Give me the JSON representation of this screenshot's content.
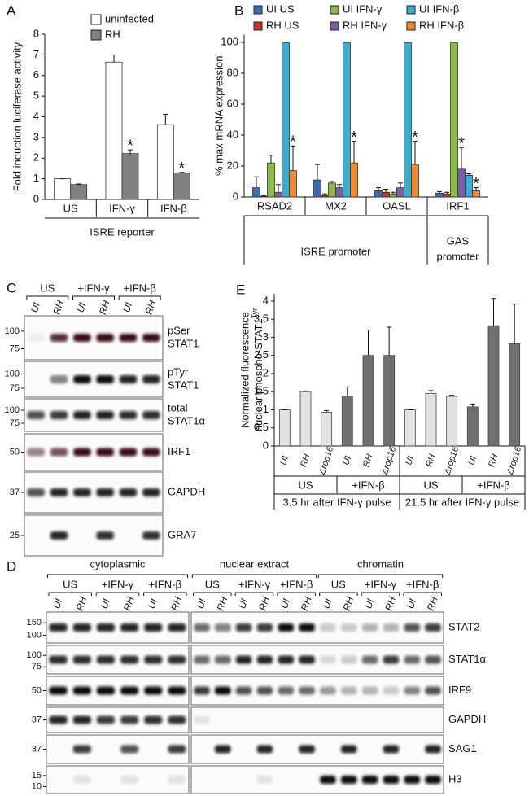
{
  "panel_labels": [
    "A",
    "B",
    "C",
    "D",
    "E"
  ],
  "chart_data": [
    {
      "type": "bar",
      "ylabel": "Fold induction luciferase activity",
      "xlabel": "ISRE reporter",
      "categories": [
        "US",
        "IFN-γ",
        "IFN-β"
      ],
      "series": [
        {
          "name": "uninfected",
          "color": "#ffffff",
          "values": [
            1.0,
            6.65,
            3.62
          ],
          "errors": [
            0,
            0.35,
            0.5
          ],
          "significance": [
            null,
            null,
            null
          ]
        },
        {
          "name": "RH",
          "color": "#808080",
          "values": [
            0.72,
            2.22,
            1.28
          ],
          "errors": [
            0.03,
            0.18,
            0.03
          ],
          "significance": [
            null,
            "*",
            "*"
          ]
        }
      ],
      "ylim": [
        0,
        8
      ],
      "yticks": [
        0,
        1,
        2,
        3,
        4,
        5,
        6,
        7,
        8
      ]
    },
    {
      "type": "bar",
      "ylabel": "% max mRNA expression",
      "categories": [
        "RSAD2",
        "MX2",
        "OASL",
        "IRF1"
      ],
      "groups": [
        {
          "lines": [
            "ISRE promoter"
          ]
        },
        {
          "lines": [
            "GAS",
            "promoter"
          ]
        }
      ],
      "series": [
        {
          "name": "UI US",
          "color": "#3a6fb5",
          "values": [
            6,
            11,
            4,
            2.5
          ],
          "errors": [
            7,
            10,
            2,
            1
          ],
          "significance": [
            null,
            null,
            null,
            null
          ]
        },
        {
          "name": "RH US",
          "color": "#c0392b",
          "values": [
            0.5,
            1,
            3,
            2
          ],
          "errors": [
            0.5,
            1,
            2,
            1
          ],
          "significance": [
            null,
            null,
            null,
            null
          ]
        },
        {
          "name": "UI IFN-γ",
          "color": "#8db84a",
          "values": [
            22,
            9,
            2,
            100
          ],
          "errors": [
            5,
            1,
            1,
            0
          ],
          "significance": [
            null,
            null,
            null,
            null
          ]
        },
        {
          "name": "RH IFN-γ",
          "color": "#7b5ea7",
          "values": [
            3,
            6,
            6,
            18
          ],
          "errors": [
            5,
            2,
            3,
            14
          ],
          "significance": [
            null,
            null,
            null,
            "*"
          ]
        },
        {
          "name": "UI IFN-β",
          "color": "#3aaed0",
          "values": [
            100,
            100,
            100,
            14
          ],
          "errors": [
            0,
            0,
            0,
            1
          ],
          "significance": [
            null,
            null,
            null,
            null
          ]
        },
        {
          "name": "RH IFN-β",
          "color": "#f08a30",
          "values": [
            17,
            22,
            21,
            4
          ],
          "errors": [
            16,
            14,
            15,
            2
          ],
          "significance": [
            "*",
            "*",
            "*",
            "*"
          ]
        }
      ],
      "ylim": [
        0,
        105
      ],
      "yticks": [
        0,
        20,
        40,
        60,
        80,
        100
      ]
    },
    {
      "type": "bar",
      "ylabel_lines": [
        "Normalized fluorescence",
        "nuclear phospho-STAT1"
      ],
      "ylabel_superscript": "Tyr",
      "categories": [
        "UI",
        "RH",
        "Δrop16",
        "UI",
        "RH",
        "Δrop16",
        "UI",
        "RH",
        "Δrop16",
        "UI",
        "RH",
        "Δrop16"
      ],
      "values": [
        1.0,
        1.5,
        0.93,
        1.38,
        2.5,
        2.5,
        1.0,
        1.45,
        1.37,
        1.08,
        3.32,
        2.82
      ],
      "errors": [
        0,
        0.02,
        0.05,
        0.25,
        0.7,
        0.78,
        0,
        0.08,
        0.03,
        0.08,
        0.75,
        1.1
      ],
      "colors": [
        "#e2e2e2",
        "#e2e2e2",
        "#e2e2e2",
        "#707070",
        "#707070",
        "#707070",
        "#e2e2e2",
        "#e2e2e2",
        "#e2e2e2",
        "#707070",
        "#707070",
        "#707070"
      ],
      "treatments": [
        "US",
        "+IFN-β",
        "US",
        "+IFN-β"
      ],
      "timepoints": [
        "3.5 hr after IFN-γ pulse",
        "21.5 hr after IFN-γ pulse"
      ],
      "ylim": [
        0,
        4.2
      ],
      "yticks": [
        0,
        0.5,
        1,
        1.5,
        2,
        2.5,
        3,
        3.5,
        4
      ]
    }
  ],
  "blot_c": {
    "conditions": [
      "US",
      "+IFN-γ",
      "+IFN-β"
    ],
    "lanes": [
      "UI",
      "RH",
      "UI",
      "RH",
      "UI",
      "RH"
    ],
    "rows": [
      {
        "label": [
          "pSer",
          "STAT1"
        ],
        "markers": [
          100,
          75
        ]
      },
      {
        "label": [
          "pTyr",
          "STAT1"
        ],
        "markers": [
          100,
          75
        ]
      },
      {
        "label": [
          "total",
          "STAT1α"
        ],
        "markers": [
          100,
          75
        ]
      },
      {
        "label": [
          "IRF1"
        ],
        "markers": [
          50
        ]
      },
      {
        "label": [
          "GAPDH"
        ],
        "markers": [
          37
        ]
      },
      {
        "label": [
          "GRA7"
        ],
        "markers": [
          25
        ]
      }
    ]
  },
  "blot_d": {
    "fractions": [
      {
        "name": "cytoplasmic",
        "conditions": [
          "US",
          "+IFN-γ",
          "+IFN-β"
        ],
        "lanes": [
          "UI",
          "RH",
          "UI",
          "RH",
          "UI",
          "RH"
        ]
      },
      {
        "name": "nuclear extract",
        "conditions": [
          "US",
          "+IFN-γ",
          "+IFN-β"
        ],
        "lanes": [
          "UI",
          "RH",
          "UI",
          "RH",
          "UI",
          "RH"
        ]
      },
      {
        "name": "chromatin",
        "conditions": [
          "US",
          "+IFN-γ",
          "+IFN-β"
        ],
        "lanes": [
          "UI",
          "RH",
          "UI",
          "RH",
          "UI",
          "RH"
        ]
      }
    ],
    "rows": [
      {
        "label": "STAT2",
        "markers": [
          150,
          100
        ]
      },
      {
        "label": "STAT1α",
        "markers": [
          100,
          75
        ]
      },
      {
        "label": "IRF9",
        "markers": [
          50
        ]
      },
      {
        "label": "GAPDH",
        "markers": [
          37
        ]
      },
      {
        "label": "SAG1",
        "markers": [
          37
        ]
      },
      {
        "label": "H3",
        "markers": [
          15,
          10
        ]
      }
    ]
  }
}
